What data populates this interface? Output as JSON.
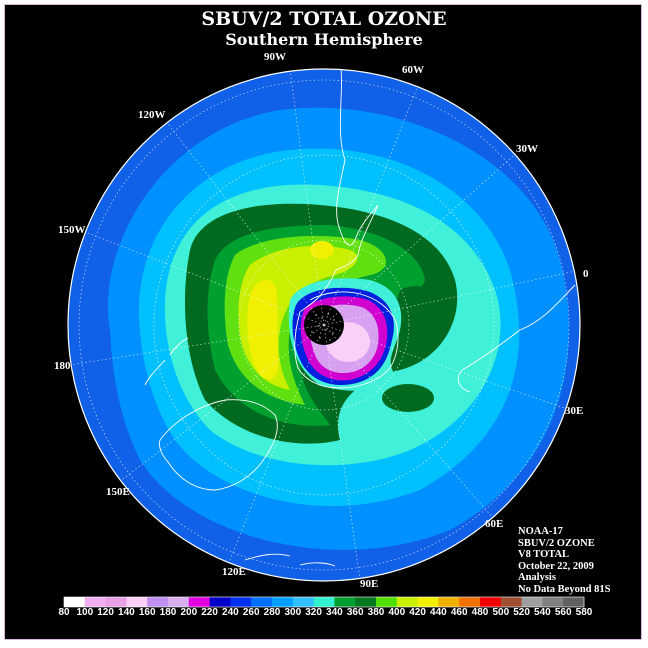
{
  "title": "SBUV/2 TOTAL OZONE",
  "subtitle": "Southern Hemisphere",
  "longitude_labels": [
    "90W",
    "60W",
    "30W",
    "0",
    "30E",
    "60E",
    "90E",
    "120E",
    "150E",
    "180",
    "150W",
    "120W"
  ],
  "info": {
    "satellite": "NOAA-17",
    "instrument": "SBUV/2 OZONE",
    "version": "V8 TOTAL",
    "date": "October 22, 2009",
    "product": "Analysis",
    "note": "No Data Beyond 81S"
  },
  "colorbar": {
    "ticks": [
      "80",
      "100",
      "120",
      "140",
      "160",
      "180",
      "200",
      "220",
      "240",
      "260",
      "280",
      "300",
      "320",
      "340",
      "360",
      "380",
      "400",
      "420",
      "440",
      "460",
      "480",
      "500",
      "520",
      "540",
      "560",
      "580"
    ],
    "colors": [
      "#ffffff",
      "#f0b0f0",
      "#e8a0e8",
      "#f8d0f8",
      "#c090f0",
      "#d8b0f0",
      "#e000e0",
      "#0000c8",
      "#0030f0",
      "#0070ff",
      "#00a0ff",
      "#30c0ff",
      "#30f0d0",
      "#00a030",
      "#007820",
      "#50e000",
      "#c8f000",
      "#f0f000",
      "#f0b000",
      "#f07000",
      "#f00000",
      "#a05030",
      "#a0a0a0",
      "#808080",
      "#606060"
    ]
  },
  "legend_colors": {
    "outer": "#1060e8",
    "ring1": "#0090ff",
    "ring2": "#00c0ff",
    "ring3": "#40f0d8",
    "dkgreen": "#006a20",
    "green": "#00a030",
    "ltgreen": "#60e010",
    "yelgrn": "#c8f000",
    "yellow": "#f0f000",
    "hole_blue": "#0020e0",
    "hole_mag": "#d000d0",
    "hole_lav": "#d8a0f0",
    "hole_pink": "#f8d0f8"
  }
}
